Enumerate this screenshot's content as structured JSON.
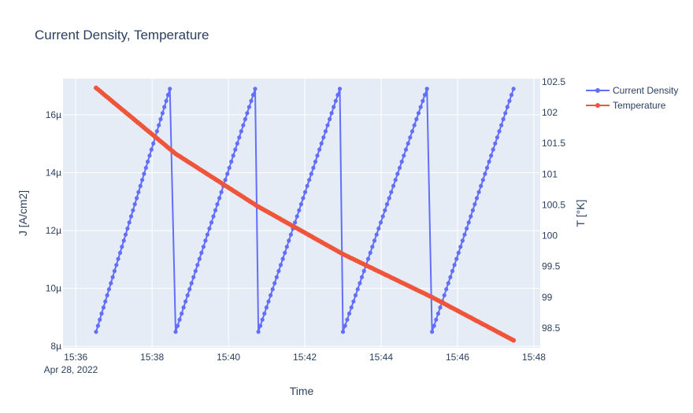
{
  "chart_data": {
    "type": "line",
    "title": "Current Density, Temperature",
    "xlabel": "Time",
    "ylabel": "J [A/cm2]",
    "y2label": "T [°K]",
    "x_ticks": [
      "15:36",
      "15:38",
      "15:40",
      "15:42",
      "15:44",
      "15:46",
      "15:48"
    ],
    "x_date_label": "Apr 28, 2022",
    "xlim": [
      "2022-04-28 15:35:40",
      "2022-04-28 15:48:10"
    ],
    "y_ticks": [
      "8µ",
      "10µ",
      "12µ",
      "14µ",
      "16µ"
    ],
    "ylim": [
      7.95e-06,
      1.725e-05
    ],
    "y2_ticks": [
      "98.5",
      "99",
      "99.5",
      "100",
      "100.5",
      "101",
      "101.5",
      "102",
      "102.5"
    ],
    "y2lim": [
      98.18,
      102.55
    ],
    "grid": true,
    "legend_position": "top-right",
    "series": [
      {
        "name": "Current Density",
        "color": "#636efa",
        "axis": "y",
        "cycles": [
          {
            "start": "15:36:32",
            "end": "15:38:28",
            "j_start": 8.5e-06,
            "j_end": 1.69e-05
          },
          {
            "start": "15:38:37",
            "end": "15:40:42",
            "j_start": 8.5e-06,
            "j_end": 1.69e-05
          },
          {
            "start": "15:40:47",
            "end": "15:42:55",
            "j_start": 8.5e-06,
            "j_end": 1.69e-05
          },
          {
            "start": "15:43:00",
            "end": "15:45:12",
            "j_start": 8.5e-06,
            "j_end": 1.69e-05
          },
          {
            "start": "15:45:20",
            "end": "15:47:28",
            "j_start": 8.5e-06,
            "j_end": 1.69e-05
          }
        ]
      },
      {
        "name": "Temperature",
        "color": "#ef553b",
        "axis": "y2",
        "points": [
          [
            "15:36:32",
            102.4
          ],
          [
            "15:38:37",
            101.33
          ],
          [
            "15:40:47",
            100.47
          ],
          [
            "15:43:00",
            99.7
          ],
          [
            "15:45:20",
            99.0
          ],
          [
            "15:47:28",
            98.3
          ]
        ]
      }
    ]
  }
}
